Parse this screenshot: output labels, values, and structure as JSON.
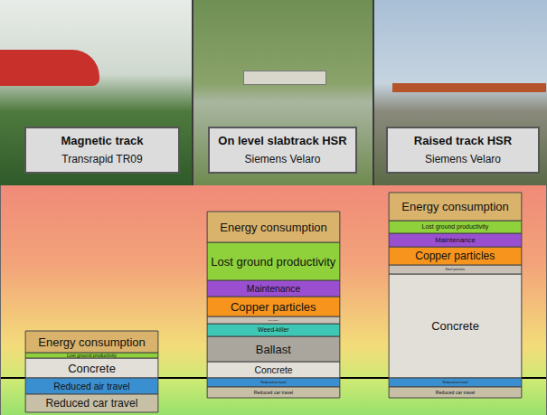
{
  "chart_data": {
    "type": "bar",
    "stacked": true,
    "tick_labels": false,
    "categories": [
      "Magnetic track",
      "On level slabtrack HSR",
      "Raised track HSR"
    ],
    "category_subtitles": [
      "Transrapid TR09",
      "Siemens Velaro",
      "Siemens Velaro"
    ],
    "ylim": [
      -41,
      213
    ],
    "yticks": [],
    "series": [
      {
        "name": "Concrete",
        "color": "#e2ded8",
        "values": [
          22,
          18,
          115
        ]
      },
      {
        "name": "Ballast",
        "color": "#aaa69e",
        "values": [
          null,
          28,
          null
        ]
      },
      {
        "name": "Weed-killer",
        "color": "#3fc7b6",
        "values": [
          null,
          14,
          null
        ]
      },
      {
        "name": "Steel particles",
        "color": "#c9c1b6",
        "values": [
          null,
          8,
          10
        ]
      },
      {
        "name": "Copper particles",
        "color": "#f7941d",
        "values": [
          null,
          22,
          20
        ]
      },
      {
        "name": "Maintenance",
        "color": "#9a4fd0",
        "values": [
          null,
          18,
          15
        ]
      },
      {
        "name": "Lost ground productivity",
        "color": "#8fd13a",
        "values": [
          6,
          42,
          14
        ]
      },
      {
        "name": "Energy consumption",
        "color": "#d9b36c",
        "values": [
          24,
          34,
          31
        ]
      },
      {
        "name": "Reduced air travel",
        "color": "#3a8fd0",
        "values": [
          -18,
          -10,
          -10
        ]
      },
      {
        "name": "Reduced car travel",
        "color": "#c8c0a6",
        "values": [
          -20,
          -12,
          -12
        ]
      }
    ]
  }
}
